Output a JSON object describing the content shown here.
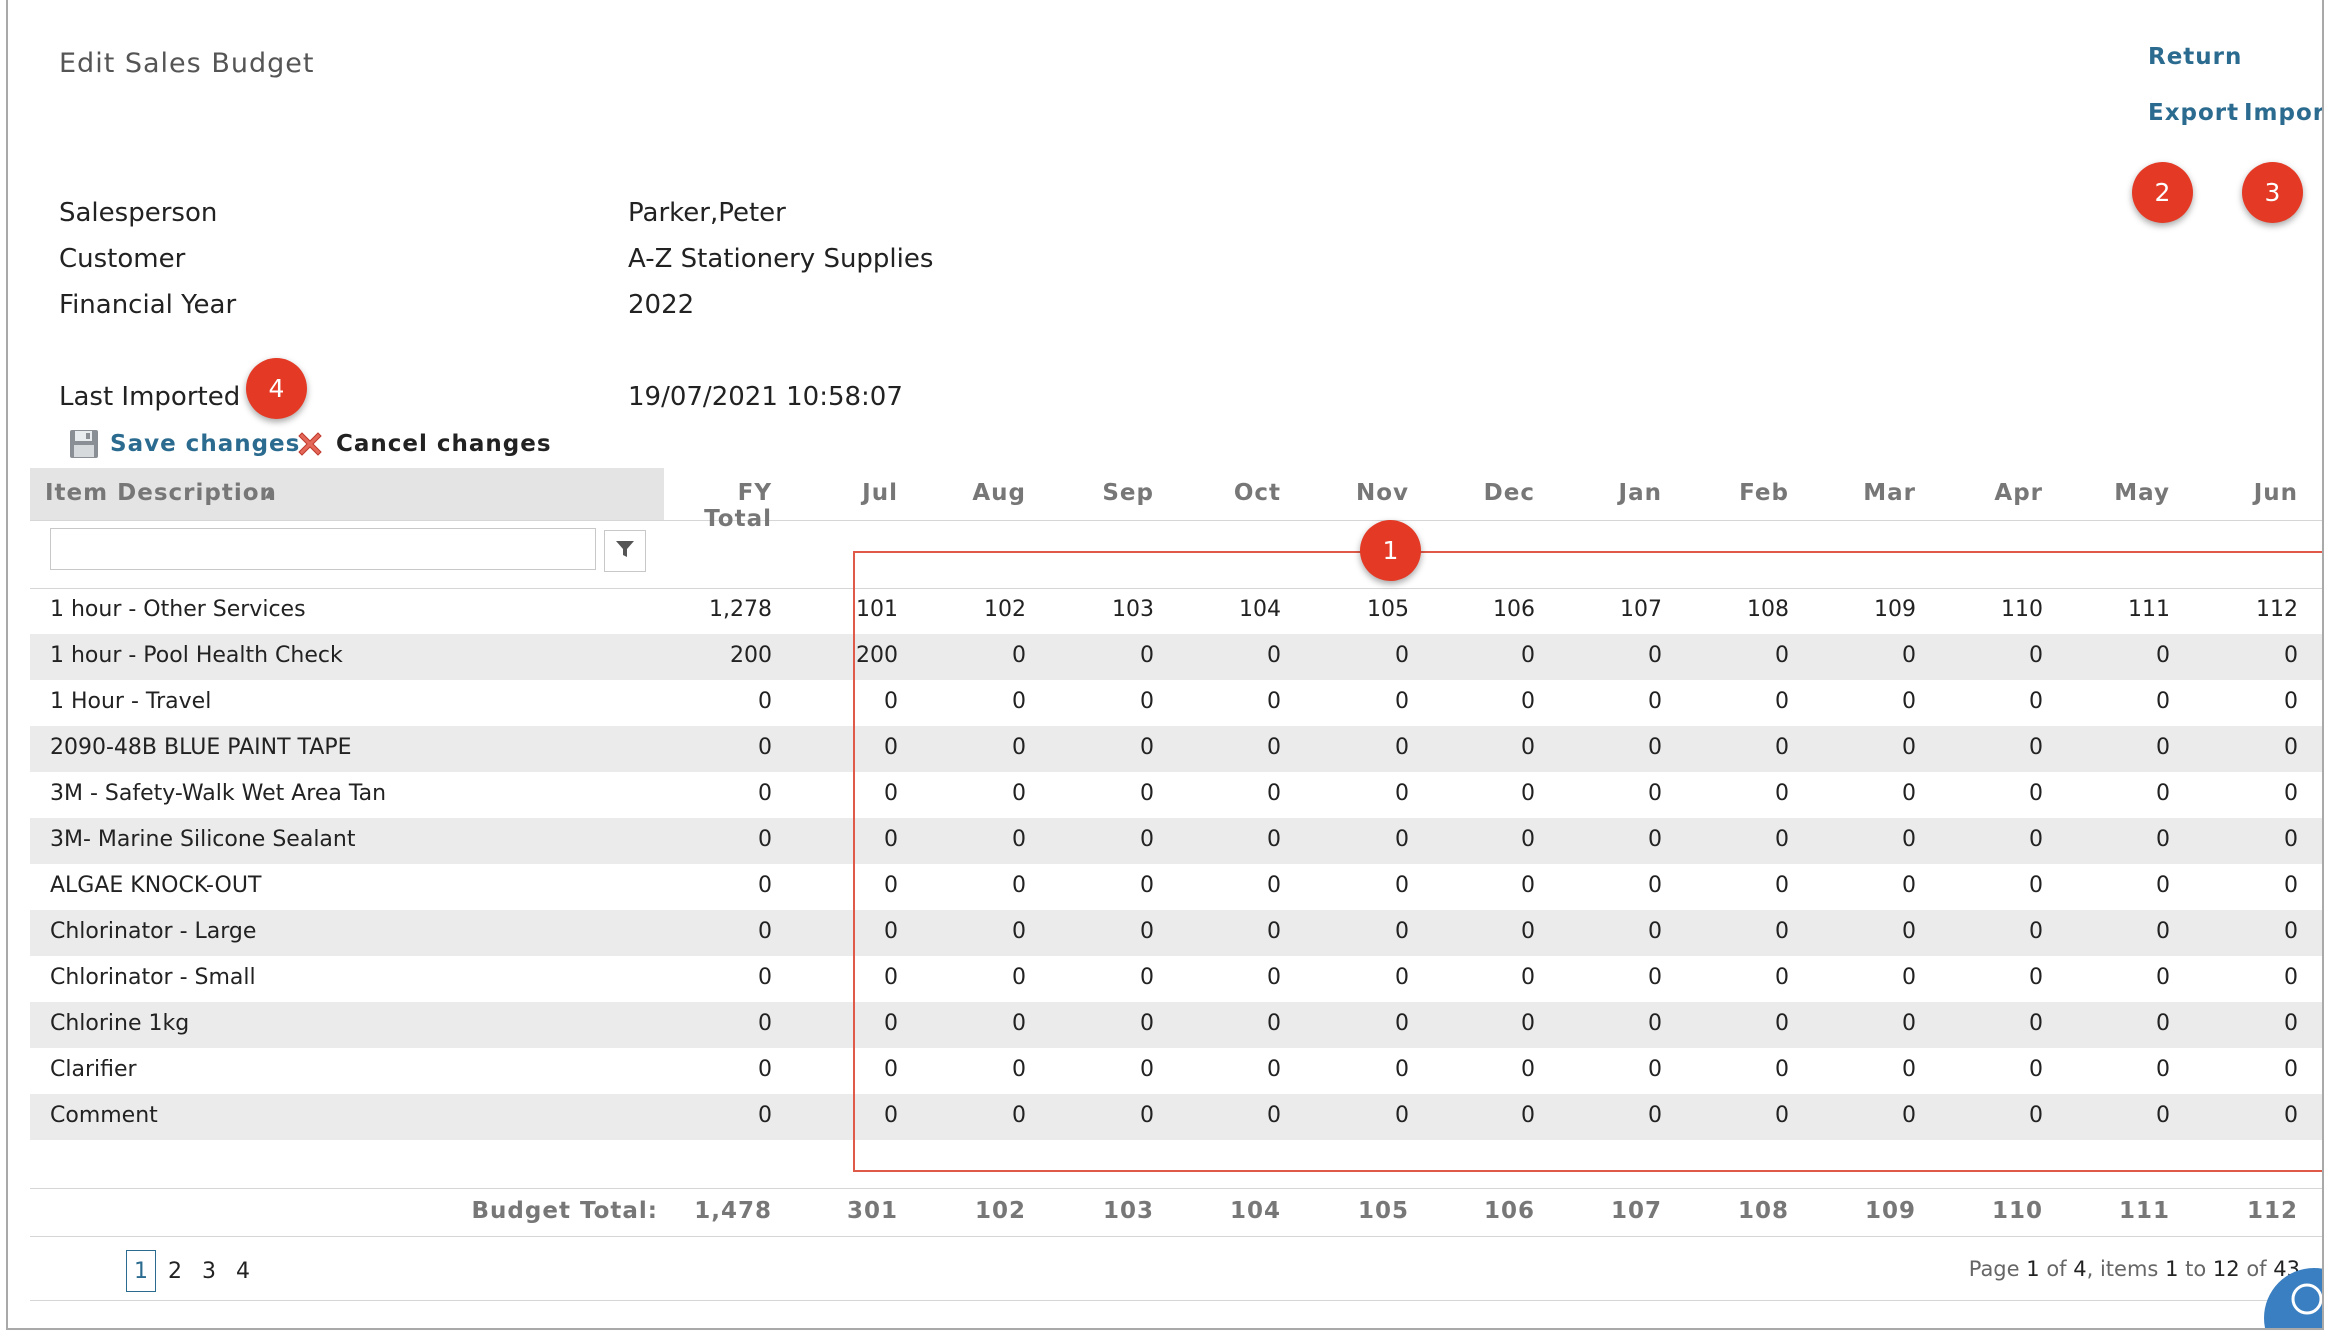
{
  "header": {
    "title": "Edit Sales Budget",
    "return_label": "Return",
    "export_label": "Export",
    "import_label": "Import"
  },
  "badges": {
    "b1": "1",
    "b2": "2",
    "b3": "3",
    "b4": "4"
  },
  "info": {
    "salesperson_label": "Salesperson",
    "salesperson_value": "Parker,Peter",
    "customer_label": "Customer",
    "customer_value": "A-Z Stationery Supplies",
    "year_label": "Financial Year",
    "year_value": "2022",
    "imported_label": "Last Imported",
    "imported_value": "19/07/2021 10:58:07"
  },
  "actions": {
    "save_label": "Save changes",
    "cancel_label": "Cancel changes"
  },
  "grid": {
    "desc_header": "Item Description",
    "sort_indicator": "▲",
    "filter_value": "",
    "columns": [
      "FY Total",
      "Jul",
      "Aug",
      "Sep",
      "Oct",
      "Nov",
      "Dec",
      "Jan",
      "Feb",
      "Mar",
      "Apr",
      "May",
      "Jun"
    ],
    "rows": [
      {
        "desc": "1 hour - Other Services",
        "values": [
          "1,278",
          "101",
          "102",
          "103",
          "104",
          "105",
          "106",
          "107",
          "108",
          "109",
          "110",
          "111",
          "112"
        ]
      },
      {
        "desc": "1 hour - Pool Health Check",
        "values": [
          "200",
          "200",
          "0",
          "0",
          "0",
          "0",
          "0",
          "0",
          "0",
          "0",
          "0",
          "0",
          "0"
        ]
      },
      {
        "desc": "1 Hour - Travel",
        "values": [
          "0",
          "0",
          "0",
          "0",
          "0",
          "0",
          "0",
          "0",
          "0",
          "0",
          "0",
          "0",
          "0"
        ]
      },
      {
        "desc": "2090-48B BLUE PAINT TAPE",
        "values": [
          "0",
          "0",
          "0",
          "0",
          "0",
          "0",
          "0",
          "0",
          "0",
          "0",
          "0",
          "0",
          "0"
        ]
      },
      {
        "desc": "3M - Safety-Walk Wet Area Tan",
        "values": [
          "0",
          "0",
          "0",
          "0",
          "0",
          "0",
          "0",
          "0",
          "0",
          "0",
          "0",
          "0",
          "0"
        ]
      },
      {
        "desc": "3M- Marine Silicone Sealant",
        "values": [
          "0",
          "0",
          "0",
          "0",
          "0",
          "0",
          "0",
          "0",
          "0",
          "0",
          "0",
          "0",
          "0"
        ]
      },
      {
        "desc": "ALGAE KNOCK-OUT",
        "values": [
          "0",
          "0",
          "0",
          "0",
          "0",
          "0",
          "0",
          "0",
          "0",
          "0",
          "0",
          "0",
          "0"
        ]
      },
      {
        "desc": "Chlorinator - Large",
        "values": [
          "0",
          "0",
          "0",
          "0",
          "0",
          "0",
          "0",
          "0",
          "0",
          "0",
          "0",
          "0",
          "0"
        ]
      },
      {
        "desc": "Chlorinator - Small",
        "values": [
          "0",
          "0",
          "0",
          "0",
          "0",
          "0",
          "0",
          "0",
          "0",
          "0",
          "0",
          "0",
          "0"
        ]
      },
      {
        "desc": "Chlorine 1kg",
        "values": [
          "0",
          "0",
          "0",
          "0",
          "0",
          "0",
          "0",
          "0",
          "0",
          "0",
          "0",
          "0",
          "0"
        ]
      },
      {
        "desc": "Clarifier",
        "values": [
          "0",
          "0",
          "0",
          "0",
          "0",
          "0",
          "0",
          "0",
          "0",
          "0",
          "0",
          "0",
          "0"
        ]
      },
      {
        "desc": "Comment",
        "values": [
          "0",
          "0",
          "0",
          "0",
          "0",
          "0",
          "0",
          "0",
          "0",
          "0",
          "0",
          "0",
          "0"
        ]
      }
    ],
    "totals_label": "Budget Total:",
    "totals": [
      "1,478",
      "301",
      "102",
      "103",
      "104",
      "105",
      "106",
      "107",
      "108",
      "109",
      "110",
      "111",
      "112"
    ]
  },
  "pager": {
    "pages": [
      "1",
      "2",
      "3",
      "4"
    ],
    "current": "1",
    "info_prefix": "Page",
    "info_page": "1",
    "info_of": "of",
    "info_total_pages": "4",
    "info_items": ", items",
    "info_from": "1",
    "info_to_word": "to",
    "info_to": "12",
    "info_of2": "of",
    "info_total_items": "43"
  },
  "colors": {
    "accent": "#2b6b8f",
    "badge": "#e43a25",
    "highlight_border": "#e05a4a",
    "row_alt": "#ebebeb"
  }
}
